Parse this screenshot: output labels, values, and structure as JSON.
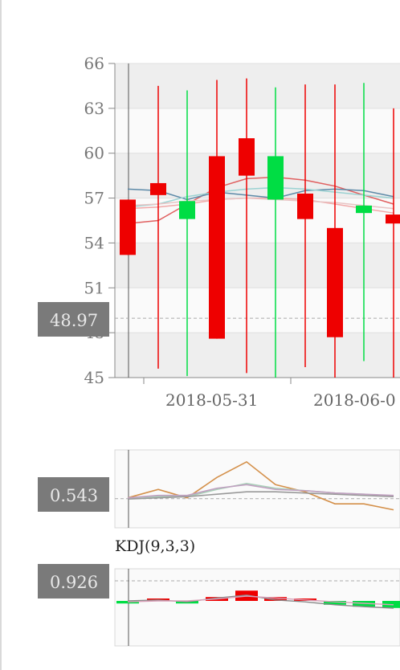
{
  "chart_data": [
    {
      "type": "candlestick",
      "ylim": [
        45,
        66
      ],
      "yticks": [
        45,
        48,
        51,
        54,
        57,
        60,
        63,
        66
      ],
      "x_tick_labels": [
        "2018-05-31",
        "2018-06-0"
      ],
      "cursor_value": "48.97",
      "candles": [
        {
          "open": 56.9,
          "close": 53.2,
          "high": 56.9,
          "low": 53.2,
          "dir": "down"
        },
        {
          "open": 58.0,
          "close": 57.2,
          "high": 64.5,
          "low": 45.6,
          "dir": "down"
        },
        {
          "open": 55.6,
          "close": 56.8,
          "high": 64.2,
          "low": 45.1,
          "dir": "up"
        },
        {
          "open": 59.8,
          "close": 47.6,
          "high": 64.9,
          "low": 47.6,
          "dir": "down"
        },
        {
          "open": 61.0,
          "close": 58.5,
          "high": 65.0,
          "low": 45.3,
          "dir": "down"
        },
        {
          "open": 56.9,
          "close": 59.8,
          "high": 64.4,
          "low": 45.0,
          "dir": "up"
        },
        {
          "open": 57.3,
          "close": 55.6,
          "high": 64.6,
          "low": 45.7,
          "dir": "down"
        },
        {
          "open": 55.0,
          "close": 47.7,
          "high": 64.6,
          "low": 45.0,
          "dir": "down"
        },
        {
          "open": 56.0,
          "close": 56.5,
          "high": 64.7,
          "low": 46.1,
          "dir": "up"
        },
        {
          "open": 55.9,
          "close": 55.3,
          "high": 63.0,
          "low": 45.0,
          "dir": "down"
        }
      ],
      "ma_lines": [
        {
          "color": "#e06060",
          "values": [
            55.3,
            55.5,
            56.6,
            57.7,
            58.3,
            58.4,
            58.2,
            57.8,
            57.2,
            56.6
          ]
        },
        {
          "color": "#f0a8a8",
          "values": [
            56.3,
            56.4,
            56.6,
            56.9,
            57.0,
            57.0,
            56.9,
            56.6,
            56.3,
            56.0
          ]
        },
        {
          "color": "#5d8aa8",
          "values": [
            57.6,
            57.5,
            56.9,
            57.4,
            57.2,
            57.0,
            57.5,
            57.6,
            57.5,
            57.1
          ]
        },
        {
          "color": "#9bd2d2",
          "values": [
            56.4,
            56.6,
            57.1,
            57.4,
            57.6,
            57.7,
            57.6,
            57.4,
            57.2,
            57.0
          ]
        },
        {
          "color": "#e8c4c4",
          "values": [
            56.5,
            56.6,
            56.8,
            56.9,
            57.0,
            56.9,
            56.8,
            56.7,
            56.5,
            56.3
          ]
        }
      ]
    },
    {
      "type": "line",
      "cursor_value": "0.543",
      "series": [
        {
          "color": "#d4904a",
          "values": [
            0.55,
            0.62,
            0.55,
            0.72,
            0.85,
            0.66,
            0.6,
            0.5,
            0.5,
            0.45
          ]
        },
        {
          "color": "#a8d0b8",
          "values": [
            0.55,
            0.56,
            0.56,
            0.62,
            0.67,
            0.63,
            0.61,
            0.59,
            0.58,
            0.56
          ]
        },
        {
          "color": "#999999",
          "values": [
            0.54,
            0.55,
            0.56,
            0.58,
            0.6,
            0.6,
            0.59,
            0.58,
            0.57,
            0.56
          ]
        },
        {
          "color": "#c0a0c0",
          "values": [
            0.55,
            0.57,
            0.57,
            0.63,
            0.66,
            0.62,
            0.61,
            0.59,
            0.58,
            0.57
          ]
        }
      ]
    },
    {
      "type": "bar",
      "title": "KDJ(9,3,3)",
      "cursor_value": "0.926",
      "bars": [
        -0.08,
        0,
        -0.08,
        0.12,
        0.32,
        0.12,
        0.04,
        -0.12,
        -0.18,
        -0.22
      ],
      "lines": [
        {
          "color": "#888888",
          "values": [
            0.6,
            0.62,
            0.58,
            0.66,
            0.72,
            0.62,
            0.58,
            0.52,
            0.48,
            0.45
          ]
        },
        {
          "color": "#d8a0b8",
          "values": [
            0.58,
            0.6,
            0.6,
            0.64,
            0.7,
            0.66,
            0.62,
            0.58,
            0.55,
            0.52
          ]
        }
      ]
    }
  ],
  "colors": {
    "up": "#00dd44",
    "down": "#ee0000"
  }
}
